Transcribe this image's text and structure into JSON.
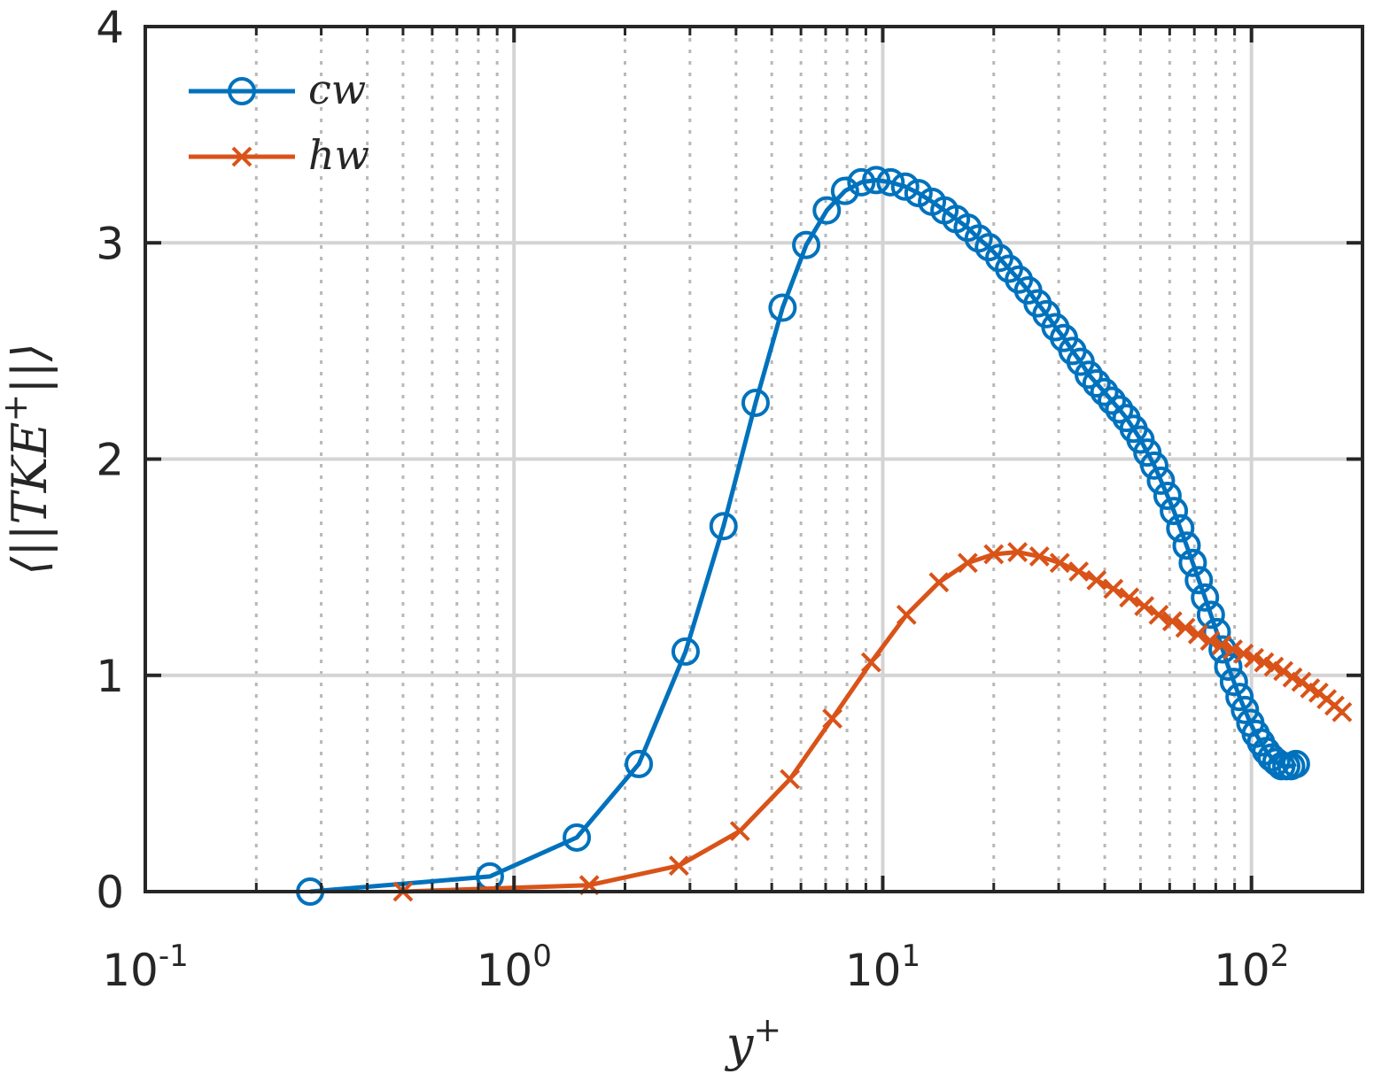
{
  "chart_data": {
    "type": "line",
    "title": "",
    "xscale": "log",
    "xlim": [
      0.1,
      200
    ],
    "ylim": [
      0,
      4
    ],
    "grid": true,
    "xlabel": {
      "base": "y",
      "sup": "+"
    },
    "ylabel": {
      "pre": "⟨||",
      "base": "TKE",
      "sup": "+",
      "post": "||⟩"
    },
    "xticks": [
      {
        "value": 0.1,
        "base": "10",
        "exp": "-1"
      },
      {
        "value": 1,
        "base": "10",
        "exp": "0"
      },
      {
        "value": 10,
        "base": "10",
        "exp": "1"
      },
      {
        "value": 100,
        "base": "10",
        "exp": "2"
      }
    ],
    "yticks": [
      {
        "value": 0,
        "label": "0"
      },
      {
        "value": 1,
        "label": "1"
      },
      {
        "value": 2,
        "label": "2"
      },
      {
        "value": 3,
        "label": "3"
      },
      {
        "value": 4,
        "label": "4"
      }
    ],
    "legend_position": "top-left",
    "series": [
      {
        "name": "cw",
        "color": "#0072BD",
        "marker": "circle",
        "x": [
          0.28,
          0.86,
          1.48,
          2.18,
          2.92,
          3.7,
          4.52,
          5.35,
          6.2,
          7.05,
          7.9,
          8.75,
          9.6,
          10.5,
          11.5,
          12.5,
          13.6,
          14.7,
          15.8,
          17.0,
          18.2,
          19.4,
          20.7,
          22.0,
          23.4,
          24.8,
          26.3,
          27.8,
          29.4,
          31.0,
          32.7,
          34.4,
          36.2,
          38.0,
          39.9,
          41.8,
          43.8,
          45.8,
          47.9,
          50.0,
          52.2,
          54.5,
          56.8,
          59.2,
          61.6,
          64.1,
          66.7,
          69.3,
          72.0,
          74.8,
          77.6,
          80.5,
          83.5,
          86.5,
          89.6,
          92.8,
          96.0,
          99.3,
          102.7,
          106.1,
          109.6,
          113.2,
          116.8,
          120.5,
          124.3,
          128.1,
          132.0
        ],
        "y": [
          0.0,
          0.07,
          0.25,
          0.59,
          1.11,
          1.69,
          2.26,
          2.7,
          2.99,
          3.15,
          3.24,
          3.28,
          3.29,
          3.28,
          3.26,
          3.23,
          3.19,
          3.15,
          3.11,
          3.07,
          3.02,
          2.98,
          2.93,
          2.88,
          2.83,
          2.78,
          2.72,
          2.67,
          2.61,
          2.56,
          2.5,
          2.45,
          2.39,
          2.35,
          2.31,
          2.27,
          2.23,
          2.19,
          2.14,
          2.09,
          2.03,
          1.97,
          1.9,
          1.83,
          1.76,
          1.68,
          1.6,
          1.52,
          1.44,
          1.36,
          1.28,
          1.2,
          1.12,
          1.04,
          0.97,
          0.9,
          0.84,
          0.78,
          0.73,
          0.69,
          0.65,
          0.62,
          0.6,
          0.58,
          0.58,
          0.58,
          0.59
        ]
      },
      {
        "name": "hw",
        "color": "#D95319",
        "marker": "x",
        "x": [
          0.5,
          1.6,
          2.8,
          4.1,
          5.6,
          7.3,
          9.3,
          11.6,
          14.2,
          17.0,
          20.0,
          23.2,
          26.6,
          30.2,
          34.0,
          38.0,
          42.2,
          46.6,
          51.2,
          56.0,
          61.0,
          66.2,
          71.6,
          77.2,
          83.0,
          89.0,
          95.2,
          101.6,
          108.2,
          115.0,
          122.0,
          129.2,
          136.6,
          144.2,
          152.0,
          160.0,
          168.0,
          176.0
        ],
        "y": [
          0.0,
          0.03,
          0.12,
          0.28,
          0.52,
          0.8,
          1.06,
          1.28,
          1.43,
          1.52,
          1.56,
          1.57,
          1.55,
          1.52,
          1.48,
          1.44,
          1.4,
          1.36,
          1.32,
          1.28,
          1.25,
          1.22,
          1.19,
          1.16,
          1.14,
          1.12,
          1.1,
          1.08,
          1.06,
          1.04,
          1.02,
          0.99,
          0.97,
          0.94,
          0.92,
          0.89,
          0.86,
          0.83
        ]
      }
    ]
  }
}
